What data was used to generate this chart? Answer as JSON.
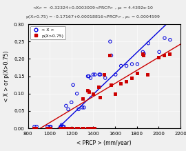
{
  "title_line1": "<X> = -0.32324+0.0003009<PRCP> , p_v = 4.4392e-10",
  "title_line2": "p(X>0.75) = -0.17167+0.00018816<PRCP> , p_v = 0.0004599",
  "xlabel": "< PRCP > (mm/year)",
  "ylabel": "< X > or p(X>0.75)",
  "xlim": [
    800,
    2200
  ],
  "ylim": [
    0,
    0.3
  ],
  "xticks": [
    800,
    1000,
    1200,
    1400,
    1600,
    1800,
    2000,
    2200
  ],
  "yticks": [
    0,
    0.05,
    0.1,
    0.15,
    0.2,
    0.25,
    0.3
  ],
  "blue_scatter": [
    [
      860,
      0.005
    ],
    [
      880,
      0.005
    ],
    [
      980,
      0.005
    ],
    [
      1000,
      0.005
    ],
    [
      1010,
      0.005
    ],
    [
      1100,
      0.005
    ],
    [
      1110,
      0.01
    ],
    [
      1120,
      0.005
    ],
    [
      1130,
      0.005
    ],
    [
      1150,
      0.065
    ],
    [
      1170,
      0.055
    ],
    [
      1200,
      0.075
    ],
    [
      1215,
      0.125
    ],
    [
      1250,
      0.1
    ],
    [
      1265,
      0.055
    ],
    [
      1300,
      0.06
    ],
    [
      1315,
      0.06
    ],
    [
      1350,
      0.15
    ],
    [
      1360,
      0.15
    ],
    [
      1375,
      0.145
    ],
    [
      1400,
      0.155
    ],
    [
      1415,
      0.155
    ],
    [
      1455,
      0.155
    ],
    [
      1465,
      0.155
    ],
    [
      1510,
      0.145
    ],
    [
      1555,
      0.25
    ],
    [
      1565,
      0.21
    ],
    [
      1605,
      0.155
    ],
    [
      1655,
      0.18
    ],
    [
      1705,
      0.18
    ],
    [
      1755,
      0.185
    ],
    [
      1805,
      0.185
    ],
    [
      1855,
      0.22
    ],
    [
      1865,
      0.215
    ],
    [
      1905,
      0.245
    ],
    [
      2005,
      0.22
    ],
    [
      2055,
      0.26
    ],
    [
      2105,
      0.255
    ]
  ],
  "red_scatter": [
    [
      855,
      0.001
    ],
    [
      875,
      0.001
    ],
    [
      975,
      0.001
    ],
    [
      995,
      0.001
    ],
    [
      1005,
      0.001
    ],
    [
      1095,
      0.001
    ],
    [
      1105,
      0.001
    ],
    [
      1115,
      0.001
    ],
    [
      1125,
      0.001
    ],
    [
      1145,
      0.001
    ],
    [
      1165,
      0.001
    ],
    [
      1195,
      0.001
    ],
    [
      1210,
      0.001
    ],
    [
      1245,
      0.001
    ],
    [
      1260,
      0.001
    ],
    [
      1295,
      0.001
    ],
    [
      1310,
      0.001
    ],
    [
      1345,
      0.001
    ],
    [
      1355,
      0.001
    ],
    [
      1370,
      0.001
    ],
    [
      1395,
      0.001
    ],
    [
      1410,
      0.001
    ],
    [
      1300,
      0.085
    ],
    [
      1350,
      0.11
    ],
    [
      1360,
      0.105
    ],
    [
      1400,
      0.1
    ],
    [
      1450,
      0.12
    ],
    [
      1460,
      0.09
    ],
    [
      1500,
      0.155
    ],
    [
      1550,
      0.21
    ],
    [
      1560,
      0.125
    ],
    [
      1600,
      0.1
    ],
    [
      1650,
      0.13
    ],
    [
      1700,
      0.135
    ],
    [
      1750,
      0.145
    ],
    [
      1800,
      0.16
    ],
    [
      1850,
      0.215
    ],
    [
      1860,
      0.21
    ],
    [
      1900,
      0.155
    ],
    [
      2000,
      0.205
    ],
    [
      2050,
      0.21
    ],
    [
      2100,
      0.215
    ]
  ],
  "blue_line_coeffs": [
    -0.32324,
    0.0003009
  ],
  "red_line_coeffs": [
    -0.17167,
    0.00018816
  ],
  "blue_color": "#0000dd",
  "red_color": "#cc0000",
  "bg_color": "#f0f0f0",
  "legend_labels": [
    "< X >",
    "p(X>0.75)"
  ]
}
